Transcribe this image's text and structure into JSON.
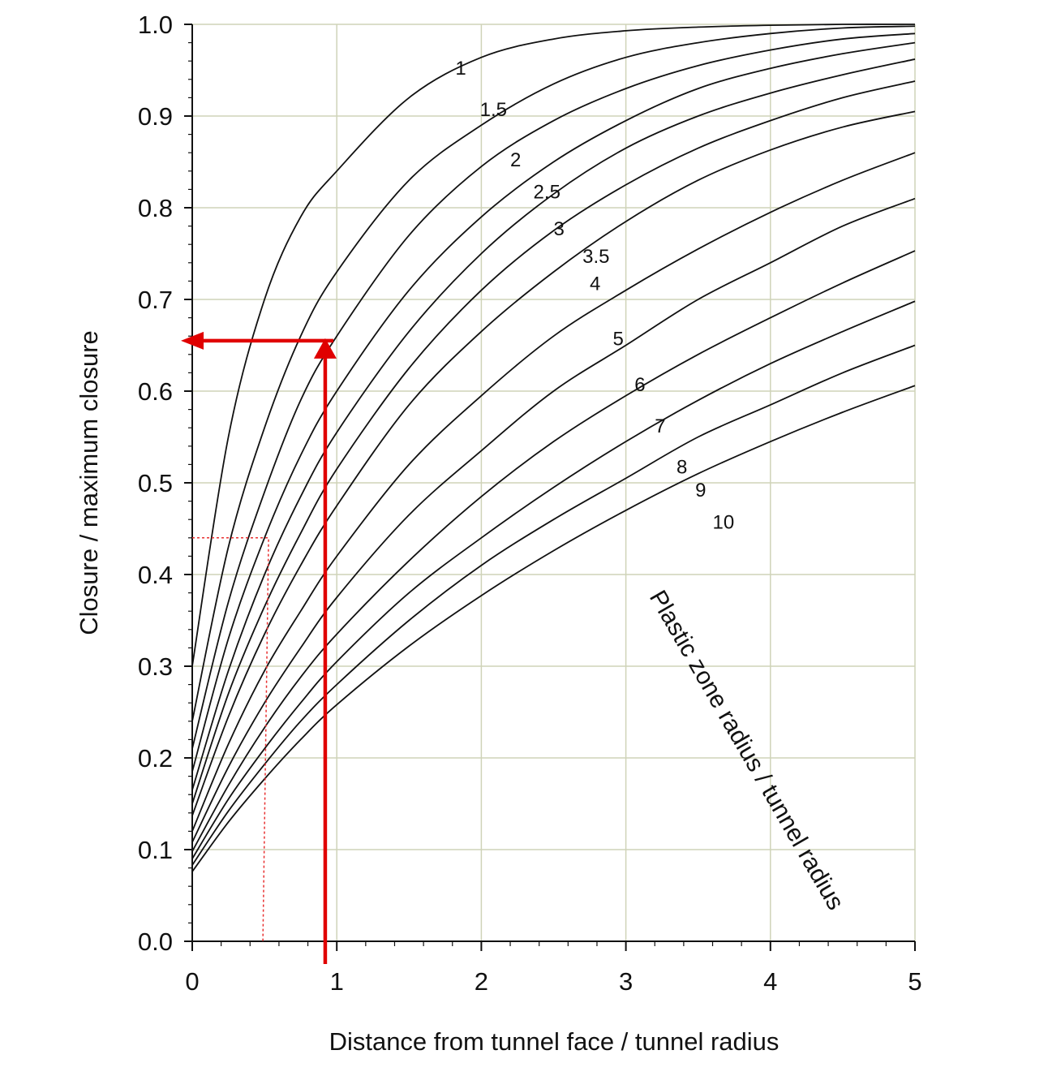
{
  "chart_data": {
    "type": "line",
    "title": "",
    "xlabel": "Distance from tunnel face / tunnel radius",
    "ylabel": "Closure / maximum closure",
    "xlim": [
      0,
      5
    ],
    "ylim": [
      0,
      1
    ],
    "x_ticks": [
      "0",
      "1",
      "2",
      "3",
      "4",
      "5"
    ],
    "y_ticks": [
      "0.0",
      "0.1",
      "0.2",
      "0.3",
      "0.4",
      "0.5",
      "0.6",
      "0.7",
      "0.8",
      "0.9",
      "1.0"
    ],
    "grid": true,
    "legend_title": "Plastic zone radius / tunnel radius",
    "x": [
      0,
      0.25,
      0.5,
      0.75,
      1,
      1.5,
      2,
      2.5,
      3,
      3.5,
      4,
      4.5,
      5
    ],
    "series": [
      {
        "name": "1",
        "values": [
          0.3,
          0.55,
          0.7,
          0.79,
          0.84,
          0.92,
          0.964,
          0.984,
          0.993,
          0.997,
          0.999,
          1.0,
          1.0
        ]
      },
      {
        "name": "1.5",
        "values": [
          0.24,
          0.43,
          0.56,
          0.66,
          0.73,
          0.83,
          0.89,
          0.935,
          0.964,
          0.98,
          0.99,
          0.996,
          0.998
        ]
      },
      {
        "name": "2",
        "values": [
          0.21,
          0.37,
          0.49,
          0.59,
          0.66,
          0.77,
          0.845,
          0.895,
          0.93,
          0.955,
          0.972,
          0.984,
          0.99
        ]
      },
      {
        "name": "2.5",
        "values": [
          0.185,
          0.33,
          0.44,
          0.53,
          0.6,
          0.71,
          0.79,
          0.85,
          0.895,
          0.93,
          0.952,
          0.968,
          0.98
        ]
      },
      {
        "name": "3",
        "values": [
          0.165,
          0.295,
          0.4,
          0.485,
          0.555,
          0.665,
          0.75,
          0.815,
          0.865,
          0.9,
          0.925,
          0.945,
          0.962
        ]
      },
      {
        "name": "3.5",
        "values": [
          0.15,
          0.27,
          0.365,
          0.445,
          0.515,
          0.625,
          0.71,
          0.775,
          0.825,
          0.865,
          0.895,
          0.92,
          0.938
        ]
      },
      {
        "name": "4",
        "values": [
          0.137,
          0.245,
          0.335,
          0.41,
          0.475,
          0.585,
          0.665,
          0.73,
          0.785,
          0.83,
          0.863,
          0.888,
          0.905
        ]
      },
      {
        "name": "5",
        "values": [
          0.12,
          0.215,
          0.295,
          0.36,
          0.42,
          0.52,
          0.595,
          0.66,
          0.71,
          0.755,
          0.795,
          0.83,
          0.86
        ]
      },
      {
        "name": "6",
        "values": [
          0.108,
          0.19,
          0.26,
          0.32,
          0.375,
          0.465,
          0.535,
          0.6,
          0.65,
          0.7,
          0.74,
          0.78,
          0.81
        ]
      },
      {
        "name": "7",
        "values": [
          0.098,
          0.17,
          0.233,
          0.288,
          0.335,
          0.415,
          0.485,
          0.545,
          0.595,
          0.64,
          0.68,
          0.718,
          0.753
        ]
      },
      {
        "name": "8",
        "values": [
          0.09,
          0.155,
          0.21,
          0.26,
          0.305,
          0.38,
          0.44,
          0.495,
          0.545,
          0.59,
          0.63,
          0.665,
          0.698
        ]
      },
      {
        "name": "9",
        "values": [
          0.083,
          0.142,
          0.193,
          0.24,
          0.28,
          0.35,
          0.41,
          0.46,
          0.505,
          0.55,
          0.585,
          0.62,
          0.65
        ]
      },
      {
        "name": "10",
        "values": [
          0.076,
          0.13,
          0.177,
          0.22,
          0.258,
          0.322,
          0.377,
          0.426,
          0.47,
          0.51,
          0.545,
          0.577,
          0.606
        ]
      }
    ],
    "curve_label_positions": [
      {
        "name": "1",
        "x": 1.82,
        "y": 0.945
      },
      {
        "name": "1.5",
        "x": 1.99,
        "y": 0.9
      },
      {
        "name": "2",
        "x": 2.2,
        "y": 0.845
      },
      {
        "name": "2.5",
        "x": 2.36,
        "y": 0.81
      },
      {
        "name": "3",
        "x": 2.5,
        "y": 0.77
      },
      {
        "name": "3.5",
        "x": 2.7,
        "y": 0.74
      },
      {
        "name": "4",
        "x": 2.75,
        "y": 0.71
      },
      {
        "name": "5",
        "x": 2.91,
        "y": 0.65
      },
      {
        "name": "6",
        "x": 3.06,
        "y": 0.6
      },
      {
        "name": "7",
        "x": 3.2,
        "y": 0.555
      },
      {
        "name": "8",
        "x": 3.35,
        "y": 0.51
      },
      {
        "name": "9",
        "x": 3.48,
        "y": 0.485
      },
      {
        "name": "10",
        "x": 3.6,
        "y": 0.45
      }
    ],
    "annotations": {
      "red_arrow": {
        "x": 0.92,
        "y": 0.655,
        "color": "#e00000"
      },
      "red_dotted_guide": {
        "x": 0.5,
        "y": 0.44,
        "color": "#e83030"
      }
    }
  }
}
